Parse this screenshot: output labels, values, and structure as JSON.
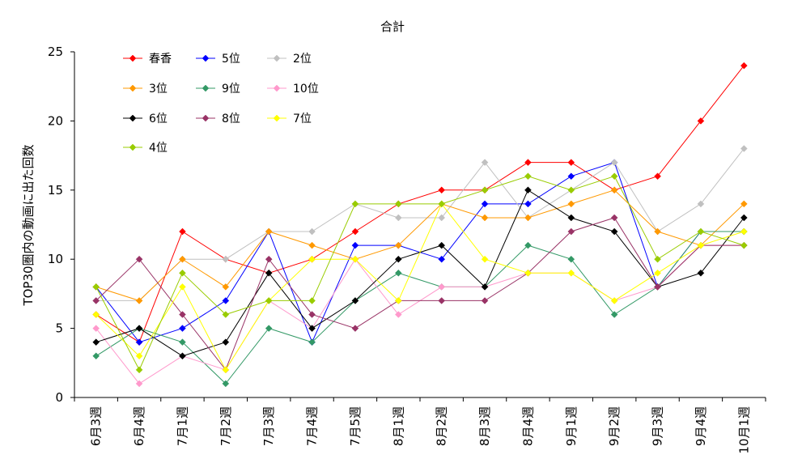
{
  "chart_data": {
    "type": "line",
    "title": "合計",
    "xlabel": "",
    "ylabel": "TOP30圏内の動画に出た回数",
    "ylim": [
      0,
      25
    ],
    "yticks": [
      0,
      5,
      10,
      15,
      20,
      25
    ],
    "grid": false,
    "legend_position": "top-left",
    "categories": [
      "6月3週",
      "6月4週",
      "7月1週",
      "7月2週",
      "7月3週",
      "7月4週",
      "7月5週",
      "8月1週",
      "8月2週",
      "8月3週",
      "8月4週",
      "9月1週",
      "9月2週",
      "9月3週",
      "9月4週",
      "10月1週"
    ],
    "series": [
      {
        "name": "春香",
        "color": "#ff0000",
        "values": [
          6,
          4,
          12,
          10,
          9,
          10,
          12,
          14,
          15,
          15,
          17,
          17,
          15,
          16,
          20,
          24
        ]
      },
      {
        "name": "5位",
        "color": "#0000ff",
        "values": [
          8,
          4,
          5,
          7,
          12,
          4,
          11,
          11,
          10,
          14,
          14,
          16,
          17,
          8,
          12,
          12
        ]
      },
      {
        "name": "2位",
        "color": "#c0c0c0",
        "values": [
          7,
          7,
          10,
          10,
          12,
          12,
          14,
          13,
          13,
          17,
          13,
          15,
          17,
          12,
          14,
          18
        ]
      },
      {
        "name": "3位",
        "color": "#ff9900",
        "values": [
          8,
          7,
          10,
          8,
          12,
          11,
          10,
          11,
          14,
          13,
          13,
          14,
          15,
          12,
          11,
          14
        ]
      },
      {
        "name": "9位",
        "color": "#339966",
        "values": [
          3,
          5,
          4,
          1,
          5,
          4,
          7,
          9,
          8,
          8,
          11,
          10,
          6,
          8,
          12,
          12
        ]
      },
      {
        "name": "10位",
        "color": "#ff99cc",
        "values": [
          5,
          1,
          3,
          2,
          7,
          5,
          10,
          6,
          8,
          8,
          9,
          9,
          7,
          8,
          11,
          11
        ]
      },
      {
        "name": "6位",
        "color": "#000000",
        "values": [
          4,
          5,
          3,
          4,
          9,
          5,
          7,
          10,
          11,
          8,
          15,
          13,
          12,
          8,
          9,
          13
        ]
      },
      {
        "name": "8位",
        "color": "#993366",
        "values": [
          7,
          10,
          6,
          2,
          10,
          6,
          5,
          7,
          7,
          7,
          9,
          12,
          13,
          8,
          11,
          11
        ]
      },
      {
        "name": "7位",
        "color": "#ffff00",
        "values": [
          6,
          3,
          8,
          2,
          7,
          10,
          10,
          7,
          14,
          10,
          9,
          9,
          7,
          9,
          11,
          12
        ]
      },
      {
        "name": "4位",
        "color": "#99cc00",
        "values": [
          8,
          2,
          9,
          6,
          7,
          7,
          14,
          14,
          14,
          15,
          16,
          15,
          16,
          10,
          12,
          11
        ]
      }
    ]
  }
}
